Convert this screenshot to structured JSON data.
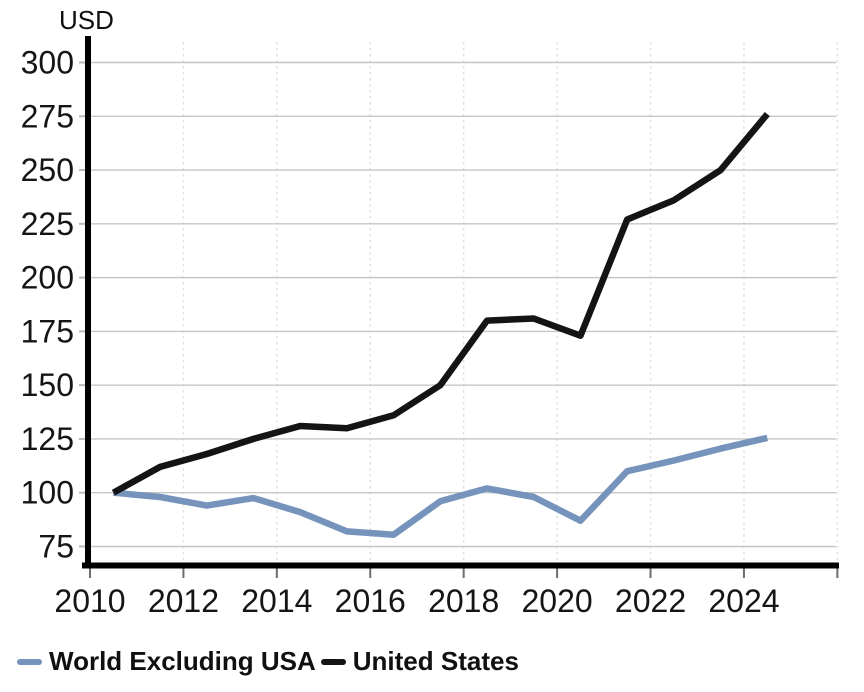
{
  "chart_data": {
    "type": "line",
    "title": "",
    "ylabel": "USD",
    "xlabel": "",
    "x": [
      2010.5,
      2011.5,
      2012.5,
      2013.5,
      2014.5,
      2015.5,
      2016.5,
      2017.5,
      2018.5,
      2019.5,
      2020.5,
      2021.5,
      2022.5,
      2023.5,
      2024.5
    ],
    "series": [
      {
        "name": "World Excluding USA",
        "color": "#7693bc",
        "values": [
          100,
          98,
          94,
          97.5,
          91,
          82,
          80.5,
          96,
          102,
          98,
          87,
          110,
          115,
          120.5,
          125.5
        ]
      },
      {
        "name": "United States",
        "color": "#141414",
        "values": [
          100,
          112,
          118,
          125,
          131,
          130,
          136,
          150,
          180,
          181,
          173,
          227,
          236,
          250,
          276
        ]
      }
    ],
    "x_ticks": [
      2010,
      2012,
      2014,
      2016,
      2018,
      2020,
      2022,
      2024
    ],
    "y_ticks": [
      75,
      100,
      125,
      150,
      175,
      200,
      225,
      250,
      275,
      300
    ],
    "ylim": [
      75,
      300
    ],
    "xlim": [
      2010,
      2026
    ],
    "grid": "horizontal solid gray, vertical faint dotted at even years",
    "legend_position": "bottom-left",
    "colors": {
      "axis": "#000000",
      "gridline": "#c6c6c6",
      "grid_dotted": "#e0e0e0",
      "x_tick_mark": "#6e6e6e",
      "y_tick_mark": "#b9b9b9",
      "tick_label": "#151515"
    }
  }
}
